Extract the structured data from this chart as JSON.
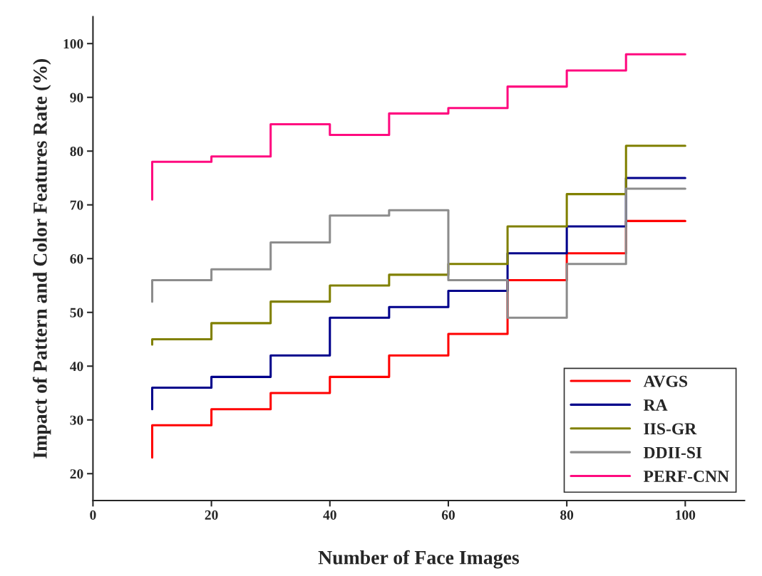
{
  "chart_data": {
    "type": "step",
    "xlabel": "Number of Face Images",
    "ylabel": "Impact of Pattern and Color Features Rate (%)",
    "x": [
      10,
      20,
      30,
      40,
      50,
      60,
      70,
      80,
      90,
      100
    ],
    "series": [
      {
        "name": "AVGS",
        "color": "#ff0000",
        "values": [
          23,
          29,
          32,
          35,
          38,
          42,
          46,
          56,
          61,
          67
        ]
      },
      {
        "name": "RA",
        "color": "#00008b",
        "values": [
          32,
          36,
          38,
          42,
          49,
          51,
          54,
          61,
          66,
          75
        ]
      },
      {
        "name": "IIS-GR",
        "color": "#808000",
        "values": [
          44,
          45,
          48,
          52,
          55,
          57,
          59,
          66,
          72,
          81
        ]
      },
      {
        "name": "DDII-SI",
        "color": "#8c8c8c",
        "values": [
          52,
          56,
          58,
          63,
          68,
          69,
          56,
          49,
          59,
          73
        ]
      },
      {
        "name": "PERF-CNN",
        "color": "#ff0a7f",
        "values": [
          71,
          78,
          79,
          85,
          83,
          87,
          88,
          92,
          95,
          98
        ]
      }
    ],
    "xlim": [
      0,
      110
    ],
    "xticks": [
      0,
      20,
      40,
      60,
      80,
      100
    ],
    "ylim": [
      15,
      105
    ],
    "yticks": [
      20,
      30,
      40,
      50,
      60,
      70,
      80,
      90,
      100
    ],
    "legend": "bottom right",
    "grid": false
  }
}
